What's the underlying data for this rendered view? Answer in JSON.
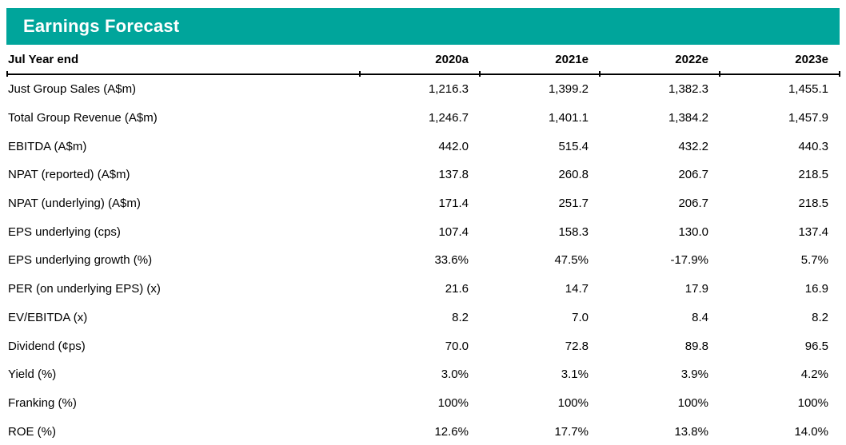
{
  "title": "Earnings Forecast",
  "colors": {
    "accent_teal": "#00A59B",
    "text": "#000000",
    "background": "#FFFFFF"
  },
  "table": {
    "row_header": "Jul Year end",
    "columns": [
      "2020a",
      "2021e",
      "2022e",
      "2023e"
    ],
    "rows": [
      {
        "label": "Just Group Sales (A$m)",
        "values": [
          "1,216.3",
          "1,399.2",
          "1,382.3",
          "1,455.1"
        ]
      },
      {
        "label": "Total Group Revenue (A$m)",
        "values": [
          "1,246.7",
          "1,401.1",
          "1,384.2",
          "1,457.9"
        ]
      },
      {
        "label": "EBITDA (A$m)",
        "values": [
          "442.0",
          "515.4",
          "432.2",
          "440.3"
        ]
      },
      {
        "label": "NPAT (reported) (A$m)",
        "values": [
          "137.8",
          "260.8",
          "206.7",
          "218.5"
        ]
      },
      {
        "label": "NPAT (underlying) (A$m)",
        "values": [
          "171.4",
          "251.7",
          "206.7",
          "218.5"
        ]
      },
      {
        "label": "EPS underlying (cps)",
        "values": [
          "107.4",
          "158.3",
          "130.0",
          "137.4"
        ]
      },
      {
        "label": "EPS underlying growth (%)",
        "values": [
          "33.6%",
          "47.5%",
          "-17.9%",
          "5.7%"
        ]
      },
      {
        "label": "PER (on underlying EPS) (x)",
        "values": [
          "21.6",
          "14.7",
          "17.9",
          "16.9"
        ]
      },
      {
        "label": "EV/EBITDA (x)",
        "values": [
          "8.2",
          "7.0",
          "8.4",
          "8.2"
        ]
      },
      {
        "label": "Dividend (¢ps)",
        "values": [
          "70.0",
          "72.8",
          "89.8",
          "96.5"
        ]
      },
      {
        "label": "Yield (%)",
        "values": [
          "3.0%",
          "3.1%",
          "3.9%",
          "4.2%"
        ]
      },
      {
        "label": "Franking (%)",
        "values": [
          "100%",
          "100%",
          "100%",
          "100%"
        ]
      },
      {
        "label": "ROE (%)",
        "values": [
          "12.6%",
          "17.7%",
          "13.8%",
          "14.0%"
        ]
      }
    ]
  },
  "chart_data": {
    "type": "table",
    "title": "Earnings Forecast",
    "columns": [
      "Jul Year end",
      "2020a",
      "2021e",
      "2022e",
      "2023e"
    ],
    "rows": [
      [
        "Just Group Sales (A$m)",
        1216.3,
        1399.2,
        1382.3,
        1455.1
      ],
      [
        "Total Group Revenue (A$m)",
        1246.7,
        1401.1,
        1384.2,
        1457.9
      ],
      [
        "EBITDA (A$m)",
        442.0,
        515.4,
        432.2,
        440.3
      ],
      [
        "NPAT (reported) (A$m)",
        137.8,
        260.8,
        206.7,
        218.5
      ],
      [
        "NPAT (underlying) (A$m)",
        171.4,
        251.7,
        206.7,
        218.5
      ],
      [
        "EPS underlying (cps)",
        107.4,
        158.3,
        130.0,
        137.4
      ],
      [
        "EPS underlying growth (%)",
        33.6,
        47.5,
        -17.9,
        5.7
      ],
      [
        "PER (on underlying EPS) (x)",
        21.6,
        14.7,
        17.9,
        16.9
      ],
      [
        "EV/EBITDA (x)",
        8.2,
        7.0,
        8.4,
        8.2
      ],
      [
        "Dividend (¢ps)",
        70.0,
        72.8,
        89.8,
        96.5
      ],
      [
        "Yield (%)",
        3.0,
        3.1,
        3.9,
        4.2
      ],
      [
        "Franking (%)",
        100,
        100,
        100,
        100
      ],
      [
        "ROE (%)",
        12.6,
        17.7,
        13.8,
        14.0
      ]
    ]
  }
}
